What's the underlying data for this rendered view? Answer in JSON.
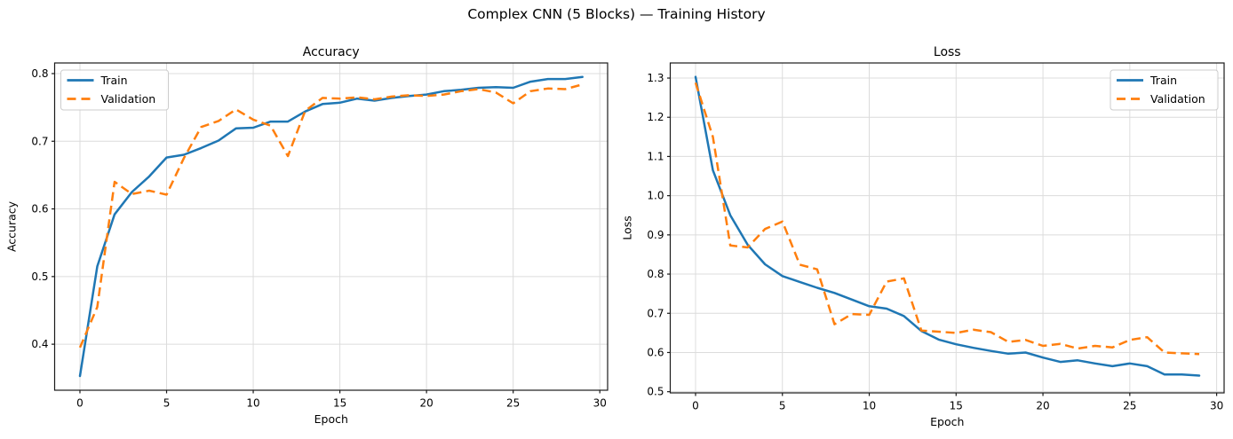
{
  "figure": {
    "suptitle": "Complex CNN (5 Blocks) — Training History",
    "background": "#ffffff"
  },
  "style": {
    "train_color": "#1f77b4",
    "validation_color": "#ff7f0e",
    "grid_color": "#dcdcdc",
    "spine_color": "#1a1a1a",
    "text_color": "#000000",
    "legend_border": "#cccccc",
    "legend_bg": "#ffffff"
  },
  "chart_data": [
    {
      "type": "line",
      "title": "Accuracy",
      "xlabel": "Epoch",
      "ylabel": "Accuracy",
      "legend_loc": "upper left",
      "grid": true,
      "xlim": [
        -1.46,
        30.45
      ],
      "ylim": [
        0.332,
        0.8157
      ],
      "xticks": [
        0,
        5,
        10,
        15,
        20,
        25,
        30
      ],
      "xtick_labels": [
        "0",
        "5",
        "10",
        "15",
        "20",
        "25",
        "30"
      ],
      "yticks": [
        0.4,
        0.5,
        0.6,
        0.7,
        0.8
      ],
      "ytick_labels": [
        "0.4",
        "0.5",
        "0.6",
        "0.7",
        "0.8"
      ],
      "x": [
        0,
        1,
        2,
        3,
        4,
        5,
        6,
        7,
        8,
        9,
        10,
        11,
        12,
        13,
        14,
        15,
        16,
        17,
        18,
        19,
        20,
        21,
        22,
        23,
        24,
        25,
        26,
        27,
        28,
        29
      ],
      "series": [
        {
          "name": "Train",
          "style": "solid",
          "color": "#1f77b4",
          "values": [
            0.353,
            0.515,
            0.592,
            0.625,
            0.648,
            0.676,
            0.68,
            0.69,
            0.701,
            0.719,
            0.72,
            0.729,
            0.729,
            0.744,
            0.755,
            0.757,
            0.763,
            0.76,
            0.764,
            0.767,
            0.769,
            0.774,
            0.776,
            0.779,
            0.78,
            0.779,
            0.788,
            0.792,
            0.792,
            0.795
          ]
        },
        {
          "name": "Validation",
          "style": "dashed",
          "color": "#ff7f0e",
          "values": [
            0.395,
            0.455,
            0.64,
            0.622,
            0.627,
            0.621,
            0.675,
            0.721,
            0.73,
            0.747,
            0.732,
            0.723,
            0.678,
            0.745,
            0.764,
            0.763,
            0.765,
            0.762,
            0.766,
            0.768,
            0.767,
            0.769,
            0.774,
            0.777,
            0.772,
            0.756,
            0.774,
            0.778,
            0.777,
            0.784
          ]
        }
      ]
    },
    {
      "type": "line",
      "title": "Loss",
      "xlabel": "Epoch",
      "ylabel": "Loss",
      "legend_loc": "upper right",
      "grid": true,
      "xlim": [
        -1.457,
        30.43
      ],
      "ylim": [
        0.497,
        1.3385
      ],
      "xticks": [
        0,
        5,
        10,
        15,
        20,
        25,
        30
      ],
      "xtick_labels": [
        "0",
        "5",
        "10",
        "15",
        "20",
        "25",
        "30"
      ],
      "yticks": [
        0.5,
        0.6,
        0.7,
        0.8,
        0.9,
        1.0,
        1.1,
        1.2,
        1.3
      ],
      "ytick_labels": [
        "0.5",
        "0.6",
        "0.7",
        "0.8",
        "0.9",
        "1.0",
        "1.1",
        "1.2",
        "1.3"
      ],
      "x": [
        0,
        1,
        2,
        3,
        4,
        5,
        6,
        7,
        8,
        9,
        10,
        11,
        12,
        13,
        14,
        15,
        16,
        17,
        18,
        19,
        20,
        21,
        22,
        23,
        24,
        25,
        26,
        27,
        28,
        29
      ],
      "series": [
        {
          "name": "Train",
          "style": "solid",
          "color": "#1f77b4",
          "values": [
            1.303,
            1.065,
            0.95,
            0.875,
            0.825,
            0.795,
            0.78,
            0.765,
            0.752,
            0.735,
            0.718,
            0.712,
            0.693,
            0.655,
            0.633,
            0.621,
            0.612,
            0.604,
            0.597,
            0.6,
            0.587,
            0.576,
            0.58,
            0.572,
            0.565,
            0.572,
            0.565,
            0.544,
            0.544,
            0.541
          ]
        },
        {
          "name": "Validation",
          "style": "dashed",
          "color": "#ff7f0e",
          "values": [
            1.288,
            1.15,
            0.873,
            0.868,
            0.915,
            0.934,
            0.824,
            0.812,
            0.672,
            0.698,
            0.696,
            0.781,
            0.789,
            0.656,
            0.653,
            0.65,
            0.658,
            0.652,
            0.627,
            0.632,
            0.617,
            0.622,
            0.61,
            0.617,
            0.613,
            0.632,
            0.639,
            0.6,
            0.598,
            0.596
          ]
        }
      ]
    }
  ]
}
